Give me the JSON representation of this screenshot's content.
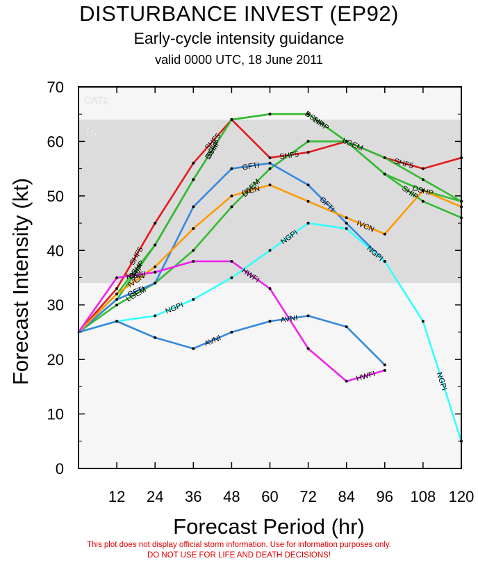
{
  "title": "DISTURBANCE INVEST (EP92)",
  "subtitle": "Early-cycle intensity guidance",
  "valid_line": "valid 0000 UTC, 18 June 2011",
  "disclaimer": {
    "line1": "This plot does not display official storm information. Use for information purposes only.",
    "line2": "DO NOT USE FOR LIFE AND DEATH DECISIONS!"
  },
  "chart_data": {
    "type": "line",
    "xlabel": "Forecast Period (hr)",
    "ylabel": "Forecast Intensity (kt)",
    "xlim": [
      0,
      120
    ],
    "ylim": [
      0,
      70
    ],
    "x_ticks": [
      12,
      24,
      36,
      48,
      60,
      72,
      84,
      96,
      108,
      120
    ],
    "y_ticks": [
      0,
      10,
      20,
      30,
      40,
      50,
      60,
      70
    ],
    "grid": false,
    "bands": [
      {
        "label": "CAT1",
        "from": 64,
        "to": 70,
        "color": "#f6f6f6"
      },
      {
        "label": "TS",
        "from": 34,
        "to": 64,
        "color": "#dcdcdc"
      },
      {
        "label": "",
        "from": 0,
        "to": 34,
        "color": "#f6f6f6"
      }
    ],
    "series": [
      {
        "name": "SHF5",
        "color": "#e41a1c",
        "x": [
          0,
          12,
          24,
          36,
          48,
          60,
          72,
          84,
          96,
          108,
          120
        ],
        "values": [
          25,
          33,
          45,
          56,
          64,
          57,
          58,
          60,
          57,
          55,
          57
        ],
        "labels_at": [
          18,
          42,
          66,
          102
        ]
      },
      {
        "name": "DSHP",
        "color": "#33bb33",
        "x": [
          0,
          12,
          24,
          36,
          48,
          60,
          72,
          84,
          96,
          108,
          120
        ],
        "values": [
          25,
          32,
          41,
          53,
          64,
          65,
          65,
          60,
          54,
          51,
          49
        ],
        "labels_at": [
          18,
          42,
          74,
          108
        ]
      },
      {
        "name": "LGEM",
        "color": "#33bb33",
        "x": [
          0,
          12,
          24,
          36,
          48,
          60,
          72,
          84,
          96,
          108,
          120
        ],
        "values": [
          25,
          30,
          34,
          40,
          48,
          55,
          60,
          60,
          57,
          53,
          49
        ],
        "labels_at": [
          18,
          54,
          86
        ]
      },
      {
        "name": "SHIP",
        "color": "#33bb33",
        "x": [
          0,
          12,
          24,
          36,
          48,
          60,
          72,
          84,
          96,
          108,
          120
        ],
        "values": [
          25,
          31,
          41,
          53,
          64,
          65,
          65,
          60,
          54,
          49,
          46
        ],
        "labels_at": [
          18,
          42,
          76,
          104
        ]
      },
      {
        "name": "GFTI",
        "color": "#3388dd",
        "x": [
          0,
          12,
          24,
          36,
          48,
          60,
          72,
          84,
          96
        ],
        "values": [
          25,
          31,
          34,
          48,
          55,
          56,
          52,
          45,
          38
        ],
        "labels_at": [
          18,
          54,
          78
        ]
      },
      {
        "name": "IVCN",
        "color": "#ff9900",
        "x": [
          0,
          12,
          24,
          36,
          48,
          60,
          72,
          84,
          96,
          108,
          120
        ],
        "values": [
          25,
          32,
          37,
          44,
          50,
          52,
          49,
          46,
          43,
          51,
          48
        ],
        "labels_at": [
          18,
          54,
          90
        ]
      },
      {
        "name": "HWFI",
        "color": "#ee22ee",
        "x": [
          0,
          12,
          24,
          36,
          48,
          60,
          72,
          84,
          96
        ],
        "values": [
          25,
          35,
          36,
          38,
          38,
          33,
          22,
          16,
          18
        ],
        "labels_at": [
          18,
          54,
          90
        ]
      },
      {
        "name": "NGPI",
        "color": "#33ffff",
        "x": [
          0,
          12,
          24,
          36,
          48,
          60,
          72,
          84,
          96,
          108,
          120
        ],
        "values": [
          25,
          27,
          28,
          31,
          35,
          40,
          45,
          44,
          38,
          27,
          5
        ],
        "labels_at": [
          30,
          66,
          93,
          114
        ]
      },
      {
        "name": "AVNI",
        "color": "#3388dd",
        "x": [
          0,
          12,
          24,
          36,
          48,
          60,
          72,
          84,
          96
        ],
        "values": [
          25,
          27,
          24,
          22,
          25,
          27,
          28,
          26,
          19
        ],
        "labels_at": [
          42,
          66
        ]
      }
    ]
  }
}
